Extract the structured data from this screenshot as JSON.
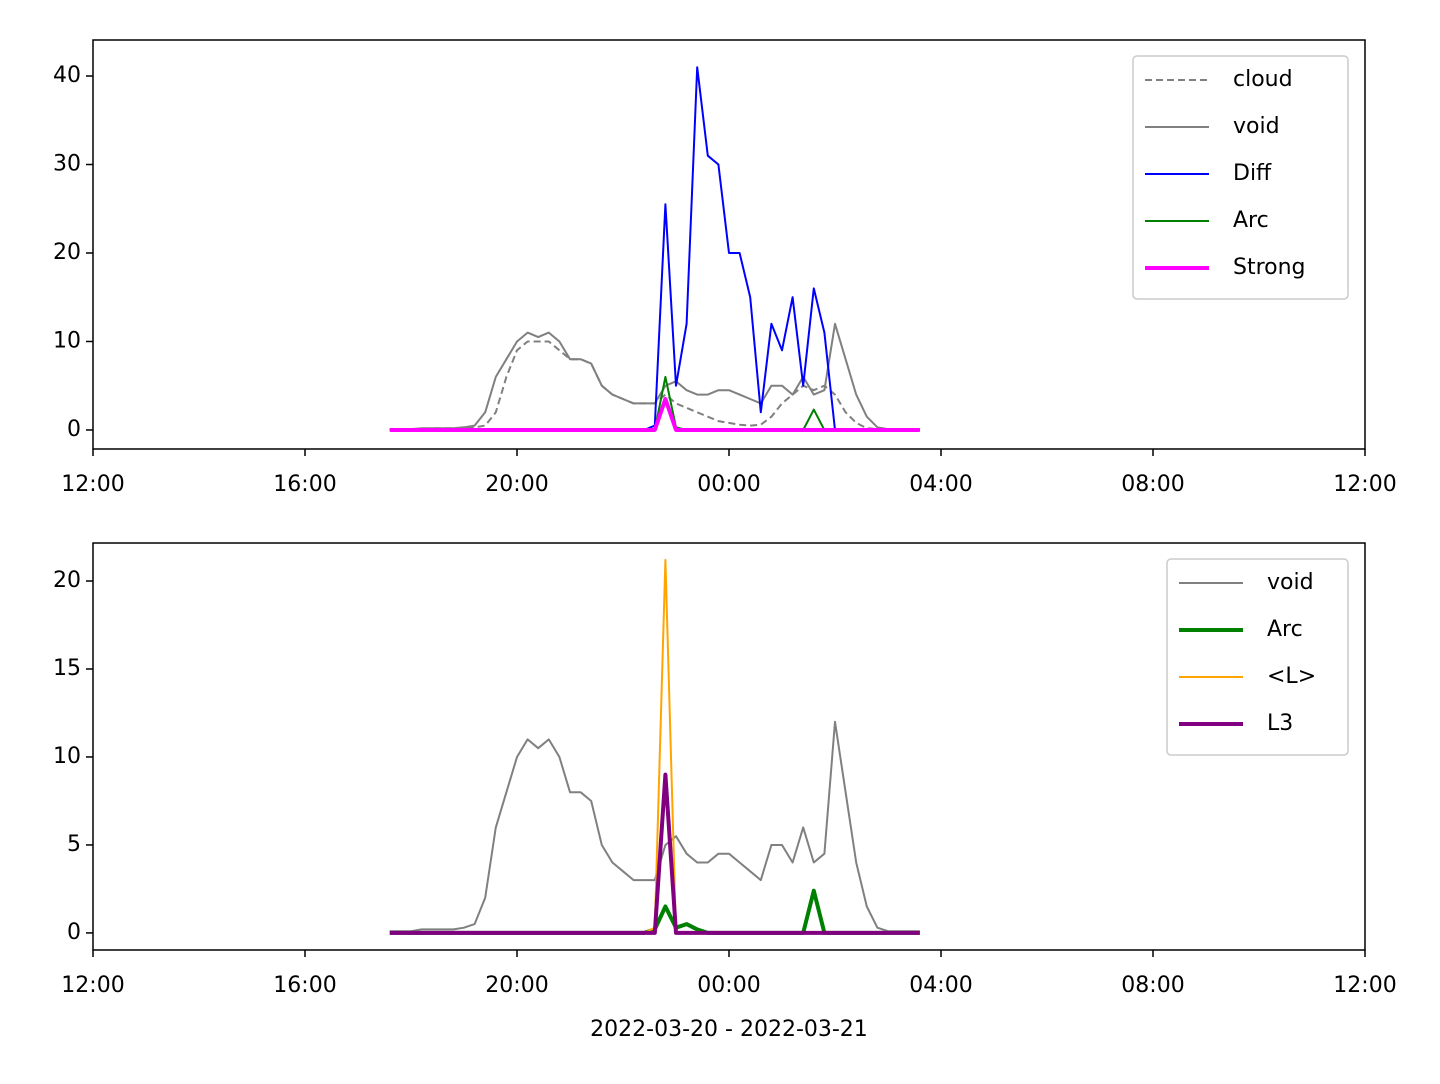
{
  "chart_data": [
    {
      "type": "line",
      "x": [
        17.6,
        17.8,
        18.0,
        18.2,
        18.4,
        18.6,
        18.8,
        19.0,
        19.2,
        19.4,
        19.6,
        19.8,
        20.0,
        20.2,
        20.4,
        20.6,
        20.8,
        21.0,
        21.2,
        21.4,
        21.6,
        21.8,
        22.0,
        22.2,
        22.4,
        22.6,
        22.8,
        23.0,
        23.2,
        23.4,
        23.6,
        23.8,
        24.0,
        24.2,
        24.4,
        24.6,
        24.8,
        25.0,
        25.2,
        25.4,
        25.6,
        25.8,
        26.0,
        26.2,
        26.4,
        26.6,
        26.8,
        27.0,
        27.2,
        27.4,
        27.6
      ],
      "xlim": [
        12,
        36
      ],
      "xticks": [
        {
          "value": 12,
          "label": "12:00"
        },
        {
          "value": 16,
          "label": "16:00"
        },
        {
          "value": 20,
          "label": "20:00"
        },
        {
          "value": 24,
          "label": "00:00"
        },
        {
          "value": 28,
          "label": "04:00"
        },
        {
          "value": 32,
          "label": "08:00"
        },
        {
          "value": 36,
          "label": "12:00"
        }
      ],
      "ylim": [
        -2.15,
        44.07
      ],
      "yticks": [
        0,
        10,
        20,
        30,
        40
      ],
      "legend": "upper right",
      "series": [
        {
          "name": "cloud",
          "color": "#808080",
          "linestyle": "dashed",
          "linewidth": 1,
          "values": [
            0.1,
            0.1,
            0.1,
            0.1,
            0.2,
            0.2,
            0.2,
            0.2,
            0.3,
            0.5,
            2,
            6,
            9,
            10,
            10,
            10,
            9,
            8,
            8,
            7.5,
            5,
            4,
            3.5,
            3,
            3,
            3,
            4,
            3,
            2.5,
            2,
            1.5,
            1,
            0.8,
            0.6,
            0.5,
            0.6,
            1.5,
            3,
            4,
            5,
            4.5,
            5,
            4,
            2,
            0.8,
            0.2,
            0.1,
            0.1,
            0.1,
            0.1,
            0.1
          ]
        },
        {
          "name": "void",
          "color": "#808080",
          "linestyle": "solid",
          "linewidth": 1,
          "values": [
            0.1,
            0.1,
            0.1,
            0.2,
            0.2,
            0.2,
            0.2,
            0.3,
            0.5,
            2,
            6,
            8,
            10,
            11,
            10.5,
            11,
            10,
            8,
            8,
            7.5,
            5,
            4,
            3.5,
            3,
            3,
            3,
            5,
            5.5,
            4.5,
            4,
            4,
            4.5,
            4.5,
            4,
            3.5,
            3,
            5,
            5,
            4,
            6,
            4,
            4.5,
            12,
            8,
            4,
            1.5,
            0.3,
            0.1,
            0.1,
            0.1,
            0.1
          ]
        },
        {
          "name": "Diff",
          "color": "#0000ff",
          "linestyle": "solid",
          "linewidth": 1,
          "values": [
            0,
            0,
            0,
            0,
            0,
            0,
            0,
            0,
            0,
            0,
            0,
            0,
            0,
            0,
            0,
            0,
            0,
            0,
            0,
            0,
            0,
            0,
            0,
            0,
            0,
            0.5,
            25.5,
            5,
            12,
            41,
            31,
            30,
            20,
            20,
            15,
            2,
            12,
            9,
            15,
            5,
            16,
            11,
            0,
            0,
            0,
            0,
            0,
            0,
            0,
            0,
            0
          ]
        },
        {
          "name": "Arc",
          "color": "#008000",
          "linestyle": "solid",
          "linewidth": 1,
          "values": [
            0,
            0,
            0,
            0,
            0,
            0,
            0,
            0,
            0,
            0,
            0,
            0,
            0,
            0,
            0,
            0,
            0,
            0,
            0,
            0,
            0,
            0,
            0,
            0,
            0,
            0,
            6,
            0.3,
            0,
            0,
            0,
            0,
            0,
            0,
            0,
            0,
            0,
            0,
            0,
            0,
            2.3,
            0,
            0,
            0,
            0,
            0,
            0,
            0,
            0,
            0,
            0
          ]
        },
        {
          "name": "Strong",
          "color": "#ff00ff",
          "linestyle": "solid",
          "linewidth": 2,
          "values": [
            0,
            0,
            0,
            0,
            0,
            0,
            0,
            0,
            0,
            0,
            0,
            0,
            0,
            0,
            0,
            0,
            0,
            0,
            0,
            0,
            0,
            0,
            0,
            0,
            0,
            0,
            3.5,
            0,
            0,
            0,
            0,
            0,
            0,
            0,
            0,
            0,
            0,
            0,
            0,
            0,
            0,
            0,
            0,
            0,
            0,
            0,
            0,
            0,
            0,
            0,
            0
          ]
        }
      ]
    },
    {
      "type": "line",
      "x": [
        17.6,
        17.8,
        18.0,
        18.2,
        18.4,
        18.6,
        18.8,
        19.0,
        19.2,
        19.4,
        19.6,
        19.8,
        20.0,
        20.2,
        20.4,
        20.6,
        20.8,
        21.0,
        21.2,
        21.4,
        21.6,
        21.8,
        22.0,
        22.2,
        22.4,
        22.6,
        22.8,
        23.0,
        23.2,
        23.4,
        23.6,
        23.8,
        24.0,
        24.2,
        24.4,
        24.6,
        24.8,
        25.0,
        25.2,
        25.4,
        25.6,
        25.8,
        26.0,
        26.2,
        26.4,
        26.6,
        26.8,
        27.0,
        27.2,
        27.4,
        27.6
      ],
      "xlim": [
        12,
        36
      ],
      "xticks": [
        {
          "value": 12,
          "label": "12:00"
        },
        {
          "value": 16,
          "label": "16:00"
        },
        {
          "value": 20,
          "label": "20:00"
        },
        {
          "value": 24,
          "label": "00:00"
        },
        {
          "value": 28,
          "label": "04:00"
        },
        {
          "value": 32,
          "label": "08:00"
        },
        {
          "value": 36,
          "label": "12:00"
        }
      ],
      "xlabel": "2022-03-20 - 2022-03-21",
      "ylim": [
        -0.97,
        22.16
      ],
      "yticks": [
        0,
        5,
        10,
        15,
        20
      ],
      "legend": "upper right",
      "series": [
        {
          "name": "void",
          "color": "#808080",
          "linestyle": "solid",
          "linewidth": 1,
          "values": [
            0.1,
            0.1,
            0.1,
            0.2,
            0.2,
            0.2,
            0.2,
            0.3,
            0.5,
            2,
            6,
            8,
            10,
            11,
            10.5,
            11,
            10,
            8,
            8,
            7.5,
            5,
            4,
            3.5,
            3,
            3,
            3,
            5,
            5.5,
            4.5,
            4,
            4,
            4.5,
            4.5,
            4,
            3.5,
            3,
            5,
            5,
            4,
            6,
            4,
            4.5,
            12,
            8,
            4,
            1.5,
            0.3,
            0.1,
            0.1,
            0.1,
            0.1
          ]
        },
        {
          "name": "Arc",
          "color": "#008000",
          "linestyle": "solid",
          "linewidth": 2,
          "values": [
            0,
            0,
            0,
            0,
            0,
            0,
            0,
            0,
            0,
            0,
            0,
            0,
            0,
            0,
            0,
            0,
            0,
            0,
            0,
            0,
            0,
            0,
            0,
            0,
            0,
            0.2,
            1.5,
            0.3,
            0.5,
            0.2,
            0,
            0,
            0,
            0,
            0,
            0,
            0,
            0,
            0,
            0,
            2.4,
            0,
            0,
            0,
            0,
            0,
            0,
            0,
            0,
            0,
            0
          ]
        },
        {
          "name": "<L>",
          "color": "#ffa500",
          "linestyle": "solid",
          "linewidth": 1,
          "values": [
            0,
            0,
            0,
            0,
            0,
            0,
            0,
            0,
            0,
            0,
            0,
            0,
            0,
            0,
            0,
            0,
            0,
            0,
            0,
            0,
            0,
            0,
            0,
            0,
            0,
            0.3,
            21.2,
            0,
            0,
            0,
            0,
            0,
            0,
            0,
            0,
            0,
            0,
            0,
            0,
            0,
            0,
            0,
            0,
            0,
            0,
            0,
            0,
            0,
            0,
            0,
            0
          ]
        },
        {
          "name": "L3",
          "color": "#800080",
          "linestyle": "solid",
          "linewidth": 2,
          "values": [
            0,
            0,
            0,
            0,
            0,
            0,
            0,
            0,
            0,
            0,
            0,
            0,
            0,
            0,
            0,
            0,
            0,
            0,
            0,
            0,
            0,
            0,
            0,
            0,
            0,
            0,
            9,
            0,
            0,
            0,
            0,
            0,
            0,
            0,
            0,
            0,
            0,
            0,
            0,
            0,
            0,
            0,
            0,
            0,
            0,
            0,
            0,
            0,
            0,
            0,
            0
          ]
        }
      ]
    }
  ]
}
